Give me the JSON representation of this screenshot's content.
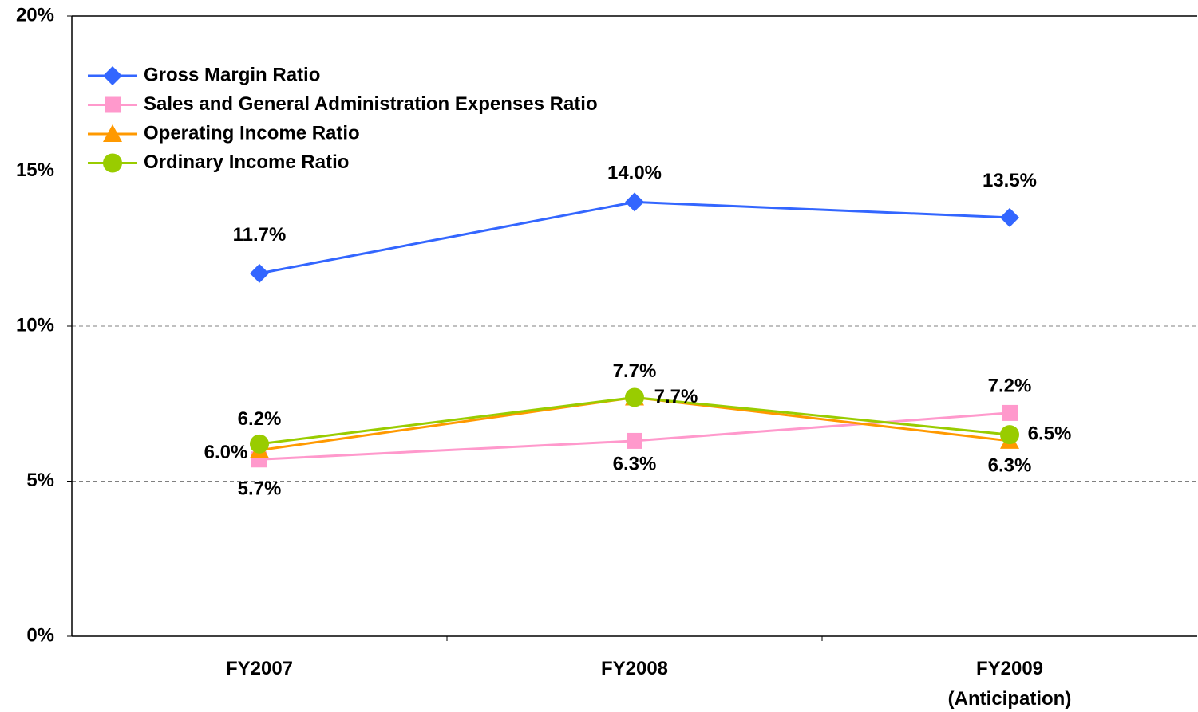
{
  "chart_data": {
    "type": "line",
    "categories": [
      "FY2007",
      "FY2008",
      "FY2009\n(Anticipation)"
    ],
    "series": [
      {
        "name": "Gross Margin Ratio",
        "color": "#3366ff",
        "marker": "diamond",
        "values": [
          11.7,
          14.0,
          13.5
        ],
        "value_labels": [
          "11.7%",
          "14.0%",
          "13.5%"
        ]
      },
      {
        "name": "Sales and General Administration Expenses Ratio",
        "color": "#ff99cc",
        "marker": "square",
        "values": [
          5.7,
          6.3,
          7.2
        ],
        "value_labels": [
          "5.7%",
          "6.3%",
          "7.2%"
        ]
      },
      {
        "name": "Operating Income Ratio",
        "color": "#ff9900",
        "marker": "triangle",
        "values": [
          6.0,
          7.7,
          6.3
        ],
        "value_labels": [
          "6.0%",
          "7.7%",
          "6.3%"
        ]
      },
      {
        "name": "Ordinary Income Ratio",
        "color": "#99cc00",
        "marker": "circle",
        "values": [
          6.2,
          7.7,
          6.5
        ],
        "value_labels": [
          "6.2%",
          "7.7%",
          "6.5%"
        ]
      }
    ],
    "ylim": [
      0,
      20
    ],
    "yticks": [
      {
        "value": 0,
        "label": "0%"
      },
      {
        "value": 5,
        "label": "5%"
      },
      {
        "value": 10,
        "label": "10%"
      },
      {
        "value": 15,
        "label": "15%"
      },
      {
        "value": 20,
        "label": "20%"
      }
    ],
    "grid": true,
    "legend": "upper left"
  }
}
